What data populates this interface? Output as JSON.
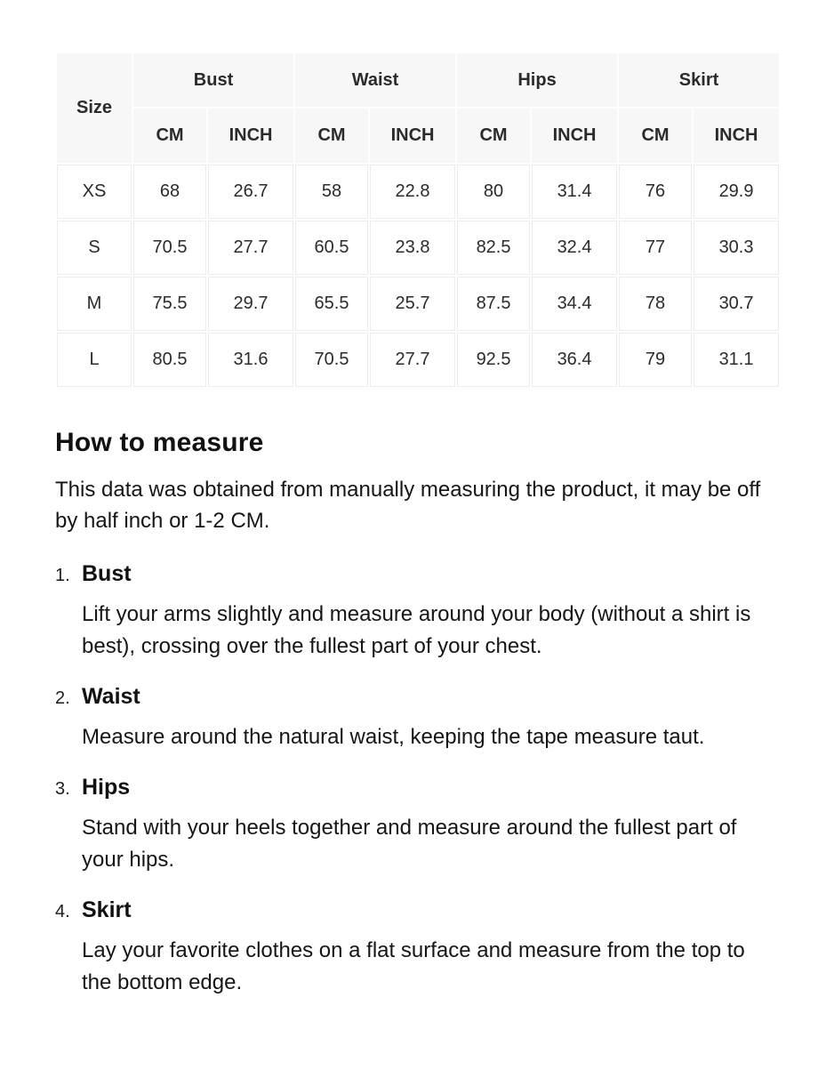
{
  "table": {
    "size_header": "Size",
    "groups": [
      {
        "label": "Bust"
      },
      {
        "label": "Waist"
      },
      {
        "label": "Hips"
      },
      {
        "label": "Skirt"
      }
    ],
    "unit_headers": [
      "CM",
      "INCH",
      "CM",
      "INCH",
      "CM",
      "INCH",
      "CM",
      "INCH"
    ],
    "rows": [
      {
        "size": "XS",
        "values": [
          "68",
          "26.7",
          "58",
          "22.8",
          "80",
          "31.4",
          "76",
          "29.9"
        ]
      },
      {
        "size": "S",
        "values": [
          "70.5",
          "27.7",
          "60.5",
          "23.8",
          "82.5",
          "32.4",
          "77",
          "30.3"
        ]
      },
      {
        "size": "M",
        "values": [
          "75.5",
          "29.7",
          "65.5",
          "25.7",
          "87.5",
          "34.4",
          "78",
          "30.7"
        ]
      },
      {
        "size": "L",
        "values": [
          "80.5",
          "31.6",
          "70.5",
          "27.7",
          "92.5",
          "36.4",
          "79",
          "31.1"
        ]
      }
    ]
  },
  "section": {
    "title": "How to measure",
    "intro": "This data was obtained from manually measuring the product, it may be off by half inch or 1-2 CM.",
    "items": [
      {
        "marker": "1.",
        "title": "Bust",
        "text": "Lift your arms slightly and measure around your body (without a shirt is best), crossing over the fullest part of your chest."
      },
      {
        "marker": "2.",
        "title": "Waist",
        "text": "Measure around the natural waist, keeping the tape measure taut."
      },
      {
        "marker": "3.",
        "title": "Hips",
        "text": "Stand with your heels together and measure around the fullest part of your hips."
      },
      {
        "marker": "4.",
        "title": "Skirt",
        "text": "Lay your favorite clothes on a flat surface and measure from the top to the bottom edge."
      }
    ]
  },
  "colors": {
    "header_bg": "#f7f7f7",
    "grid_line": "#ececec",
    "text": "#1c1c1c"
  }
}
